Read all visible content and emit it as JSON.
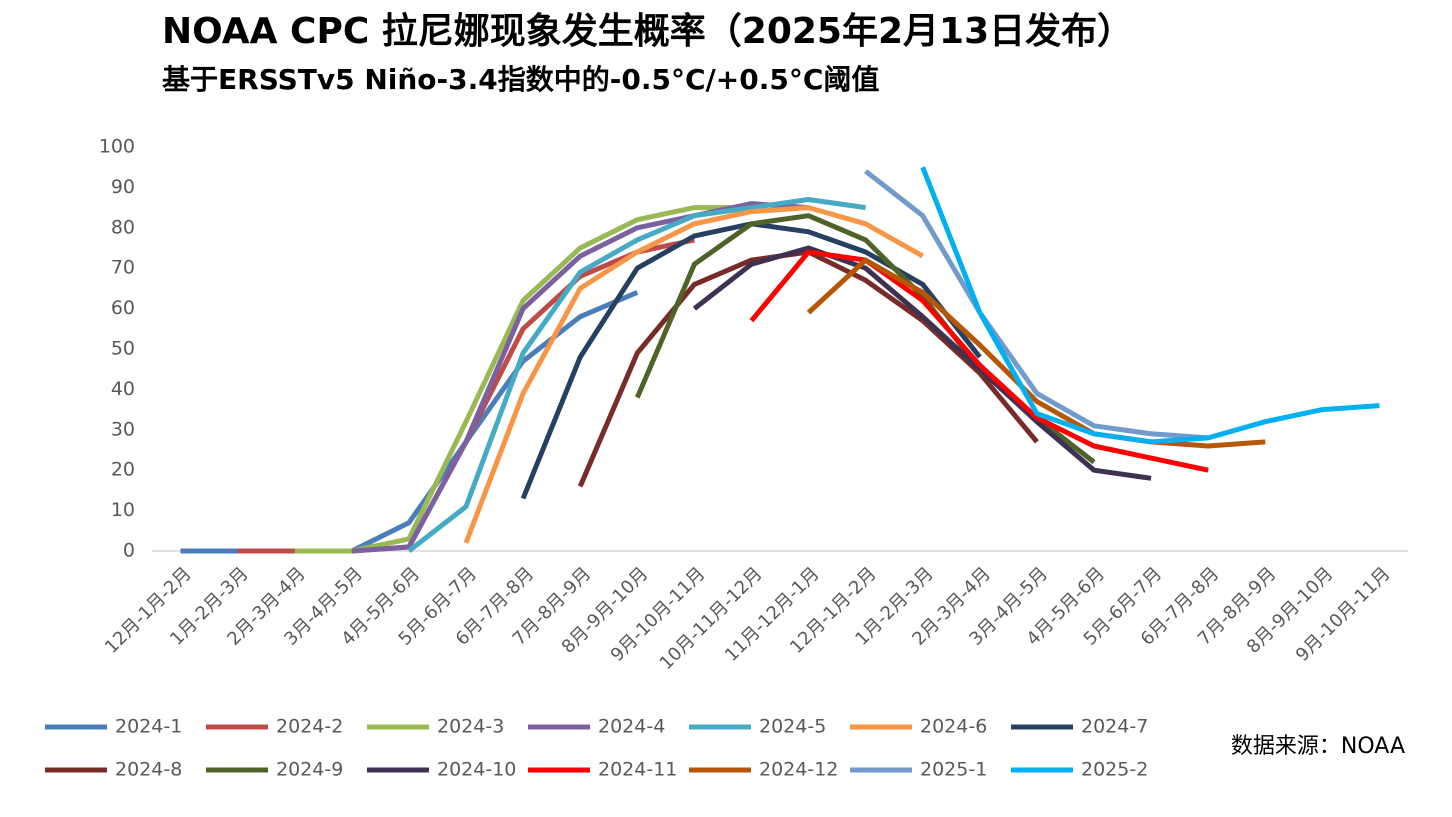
{
  "chart_data": {
    "type": "line",
    "title": "NOAA CPC 拉尼娜现象发生概率（2025年2月13日发布）",
    "subtitle": "基于ERSSTv5 Niño-3.4指数中的-0.5°C/+0.5°C阈值",
    "source": "数据来源：NOAA",
    "categories": [
      "12月-1月-2月",
      "1月-2月-3月",
      "2月-3月-4月",
      "3月-4月-5月",
      "4月-5月-6月",
      "5月-6月-7月",
      "6月-7月-8月",
      "7月-8月-9月",
      "8月-9月-10月",
      "9月-10月-11月",
      "10月-11月-12月",
      "11月-12月-1月",
      "12月-1月-2月",
      "1月-2月-3月",
      "2月-3月-4月",
      "3月-4月-5月",
      "4月-5月-6月",
      "5月-6月-7月",
      "6月-7月-8月",
      "7月-8月-9月",
      "8月-9月-10月",
      "9月-10月-11月"
    ],
    "ylim": [
      0,
      100
    ],
    "yticks": [
      0,
      10,
      20,
      30,
      40,
      50,
      60,
      70,
      80,
      90,
      100
    ],
    "series": [
      {
        "name": "2024-1",
        "color": "#4a7ebb",
        "values": [
          0,
          0,
          0,
          0,
          7,
          27,
          47,
          58,
          64,
          null,
          null,
          null,
          null,
          null,
          null,
          null,
          null,
          null,
          null,
          null,
          null,
          null
        ]
      },
      {
        "name": "2024-2",
        "color": "#be4b48",
        "values": [
          null,
          0,
          0,
          0,
          1,
          27,
          55,
          68,
          74,
          77,
          null,
          null,
          null,
          null,
          null,
          null,
          null,
          null,
          null,
          null,
          null,
          null
        ]
      },
      {
        "name": "2024-3",
        "color": "#98b954",
        "values": [
          null,
          null,
          0,
          0,
          3,
          32,
          62,
          75,
          82,
          85,
          85,
          null,
          null,
          null,
          null,
          null,
          null,
          null,
          null,
          null,
          null,
          null
        ]
      },
      {
        "name": "2024-4",
        "color": "#7d60a0",
        "values": [
          null,
          null,
          null,
          0,
          1,
          27,
          60,
          73,
          80,
          83,
          86,
          85,
          null,
          null,
          null,
          null,
          null,
          null,
          null,
          null,
          null,
          null
        ]
      },
      {
        "name": "2024-5",
        "color": "#46aac5",
        "values": [
          null,
          null,
          null,
          null,
          0,
          11,
          49,
          69,
          77,
          83,
          85,
          87,
          85,
          null,
          null,
          null,
          null,
          null,
          null,
          null,
          null,
          null
        ]
      },
      {
        "name": "2024-6",
        "color": "#f79646",
        "values": [
          null,
          null,
          null,
          null,
          null,
          2,
          39,
          65,
          74,
          81,
          84,
          85,
          81,
          73,
          null,
          null,
          null,
          null,
          null,
          null,
          null,
          null
        ]
      },
      {
        "name": "2024-7",
        "color": "#254061",
        "values": [
          null,
          null,
          null,
          null,
          null,
          null,
          13,
          48,
          70,
          78,
          81,
          79,
          74,
          66,
          48,
          null,
          null,
          null,
          null,
          null,
          null,
          null
        ]
      },
      {
        "name": "2024-8",
        "color": "#772c2a",
        "values": [
          null,
          null,
          null,
          null,
          null,
          null,
          null,
          16,
          49,
          66,
          72,
          74,
          67,
          57,
          44,
          27,
          null,
          null,
          null,
          null,
          null,
          null
        ]
      },
      {
        "name": "2024-9",
        "color": "#4f6228",
        "values": [
          null,
          null,
          null,
          null,
          null,
          null,
          null,
          null,
          38,
          71,
          81,
          83,
          77,
          63,
          45,
          33,
          22,
          null,
          null,
          null,
          null,
          null
        ]
      },
      {
        "name": "2024-10",
        "color": "#3f3151",
        "values": [
          null,
          null,
          null,
          null,
          null,
          null,
          null,
          null,
          null,
          60,
          71,
          75,
          70,
          58,
          45,
          32,
          20,
          18,
          null,
          null,
          null,
          null
        ]
      },
      {
        "name": "2024-11",
        "color": "#ff0000",
        "values": [
          null,
          null,
          null,
          null,
          null,
          null,
          null,
          null,
          null,
          null,
          57,
          74,
          72,
          62,
          46,
          33,
          26,
          23,
          20,
          null,
          null,
          null
        ]
      },
      {
        "name": "2024-12",
        "color": "#b65708",
        "values": [
          null,
          null,
          null,
          null,
          null,
          null,
          null,
          null,
          null,
          null,
          null,
          59,
          72,
          64,
          51,
          37,
          29,
          27,
          26,
          27,
          null,
          null
        ]
      },
      {
        "name": "2025-1",
        "color": "#729aca",
        "values": [
          null,
          null,
          null,
          null,
          null,
          null,
          null,
          null,
          null,
          null,
          null,
          null,
          94,
          83,
          59,
          39,
          31,
          29,
          28,
          null,
          null,
          null
        ]
      },
      {
        "name": "2025-2",
        "color": "#00b0f0",
        "values": [
          null,
          null,
          null,
          null,
          null,
          null,
          null,
          null,
          null,
          null,
          null,
          null,
          null,
          95,
          59,
          34,
          29,
          27,
          28,
          32,
          35,
          36
        ]
      }
    ]
  }
}
